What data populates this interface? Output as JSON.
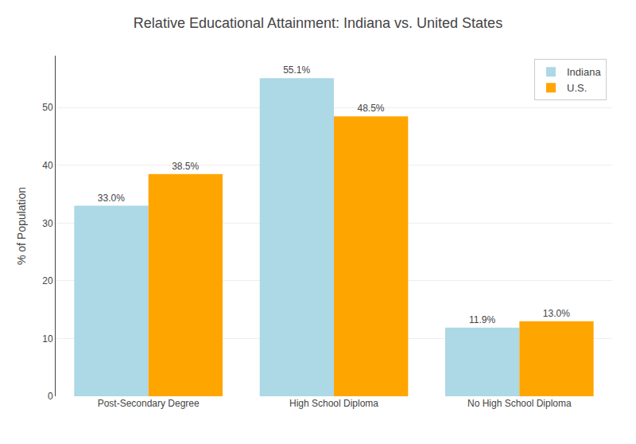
{
  "chart_data": {
    "type": "bar",
    "title": "Relative Educational Attainment: Indiana vs. United States",
    "categories": [
      "Post-Secondary Degree",
      "High School Diploma",
      "No High School Diploma"
    ],
    "series": [
      {
        "name": "Indiana",
        "color": "#ADD8E6",
        "values": [
          33.0,
          55.1,
          11.9
        ],
        "value_labels": [
          "33.0%",
          "55.1%",
          "11.9%"
        ]
      },
      {
        "name": "U.S.",
        "color": "#FFA500",
        "values": [
          38.5,
          48.5,
          13.0
        ],
        "value_labels": [
          "38.5%",
          "48.5%",
          "13.0%"
        ]
      }
    ],
    "ylabel": "% of Population",
    "ylim": [
      0,
      59
    ],
    "yticks": [
      0,
      10,
      20,
      30,
      40,
      50
    ],
    "grid": true,
    "legend": "upper right",
    "data_labels": true
  }
}
